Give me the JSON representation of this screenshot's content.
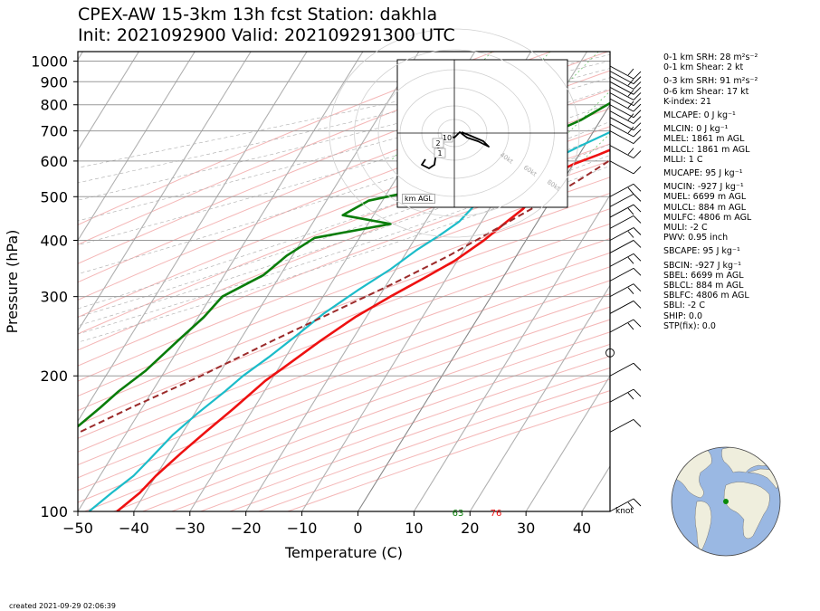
{
  "title": {
    "line1": "CPEX-AW 15-3km  13h fcst  Station: dakhla",
    "line2": "Init: 2021092900  Valid: 202109291300 UTC"
  },
  "axes": {
    "xlabel": "Temperature (C)",
    "ylabel": "Pressure (hPa)",
    "xticks": [
      "−50",
      "−40",
      "−30",
      "−20",
      "−10",
      "0",
      "10",
      "20",
      "30",
      "40"
    ],
    "yticks": [
      "100",
      "200",
      "300",
      "400",
      "500",
      "600",
      "700",
      "800",
      "900",
      "1000"
    ]
  },
  "chart_data": {
    "type": "line",
    "title": "CPEX-AW 15-3km  13h fcst  Station: dakhla",
    "xlabel": "Temperature (C)",
    "ylabel": "Pressure (hPa)",
    "xlim": [
      -50,
      45
    ],
    "ylim": [
      1050,
      100
    ],
    "yscale": "log",
    "skew": "skew-T",
    "series": [
      {
        "name": "temperature",
        "color": "#ee1111",
        "points": [
          [
            20,
            1030
          ],
          [
            23,
            1020
          ],
          [
            21,
            1005
          ],
          [
            23,
            985
          ],
          [
            26,
            960
          ],
          [
            28.5,
            935
          ],
          [
            29.5,
            915
          ],
          [
            28,
            880
          ],
          [
            25,
            835
          ],
          [
            21.5,
            790
          ],
          [
            17,
            745
          ],
          [
            12.5,
            700
          ],
          [
            7,
            655
          ],
          [
            3.5,
            620
          ],
          [
            0,
            590
          ],
          [
            -2.5,
            560
          ],
          [
            -3.5,
            530
          ],
          [
            -3.5,
            500
          ],
          [
            -4,
            470
          ],
          [
            -5.5,
            440
          ],
          [
            -7.5,
            400
          ],
          [
            -10.5,
            360
          ],
          [
            -14,
            330
          ],
          [
            -18,
            300
          ],
          [
            -22,
            270
          ],
          [
            -25.5,
            240
          ],
          [
            -29,
            210
          ],
          [
            -31,
            195
          ],
          [
            -33.5,
            170
          ],
          [
            -36,
            150
          ],
          [
            -38,
            135
          ],
          [
            -40,
            120
          ],
          [
            -41,
            110
          ],
          [
            -43,
            100
          ]
        ]
      },
      {
        "name": "dewpoint",
        "color": "#1cbcc9",
        "points": [
          [
            20.5,
            1030
          ],
          [
            18.5,
            1000
          ],
          [
            16,
            975
          ],
          [
            17.5,
            955
          ],
          [
            16,
            925
          ],
          [
            15,
            900
          ],
          [
            13,
            860
          ],
          [
            11,
            820
          ],
          [
            9,
            780
          ],
          [
            6.5,
            740
          ],
          [
            3,
            695
          ],
          [
            -1,
            645
          ],
          [
            -4.5,
            600
          ],
          [
            -8,
            555
          ],
          [
            -10.5,
            515
          ],
          [
            -13,
            480
          ],
          [
            -14,
            440
          ],
          [
            -16,
            410
          ],
          [
            -18.5,
            380
          ],
          [
            -21,
            345
          ],
          [
            -24.5,
            310
          ],
          [
            -28,
            275
          ],
          [
            -30.5,
            245
          ],
          [
            -33,
            220
          ],
          [
            -35.5,
            200
          ],
          [
            -37,
            185
          ],
          [
            -39.5,
            165
          ],
          [
            -41.5,
            148
          ],
          [
            -43,
            130
          ],
          [
            -44,
            120
          ],
          [
            -46,
            110
          ],
          [
            -48,
            100
          ]
        ]
      },
      {
        "name": "wet bulb",
        "color": "#0a7d0a",
        "points": [
          [
            18.5,
            1030
          ],
          [
            16,
            1000
          ],
          [
            10,
            980
          ],
          [
            1,
            965
          ],
          [
            5,
            930
          ],
          [
            3,
            910
          ],
          [
            2,
            875
          ],
          [
            1,
            830
          ],
          [
            -1,
            790
          ],
          [
            -3.5,
            740
          ],
          [
            -7,
            695
          ],
          [
            -11.5,
            650
          ],
          [
            -15,
            610
          ],
          [
            -18.5,
            575
          ],
          [
            -24,
            520
          ],
          [
            -32.5,
            490
          ],
          [
            -35.5,
            455
          ],
          [
            -26,
            435
          ],
          [
            -38,
            405
          ],
          [
            -41,
            370
          ],
          [
            -43,
            335
          ],
          [
            -48,
            300
          ],
          [
            -49,
            270
          ],
          [
            -51,
            240
          ],
          [
            -53.5,
            205
          ],
          [
            -56,
            185
          ],
          [
            -57.5,
            170
          ],
          [
            -60,
            150
          ],
          [
            -62.5,
            135
          ],
          [
            -65.5,
            122
          ],
          [
            -68,
            110
          ],
          [
            -70,
            100
          ]
        ]
      },
      {
        "name": "parcel",
        "color": "#9b2a2a",
        "points": [
          [
            24,
            1030
          ],
          [
            18,
            960
          ],
          [
            16,
            885
          ],
          [
            13.5,
            800
          ],
          [
            11,
            720
          ],
          [
            8.5,
            650
          ],
          [
            6,
            600
          ],
          [
            3.5,
            555
          ],
          [
            0.5,
            510
          ],
          [
            -2.5,
            470
          ],
          [
            -7,
            420
          ],
          [
            -12,
            370
          ],
          [
            -19,
            320
          ],
          [
            -26,
            280
          ],
          [
            -34,
            240
          ],
          [
            -43,
            200
          ],
          [
            -52,
            170
          ],
          [
            -62,
            140
          ],
          [
            -72,
            115
          ],
          [
            -79,
            100
          ]
        ]
      }
    ],
    "surface_labels": [
      {
        "text": "63",
        "color": "#0a7d0a"
      },
      {
        "text": "76",
        "color": "#ee1111"
      }
    ],
    "hodograph": {
      "rings_labels": [
        "40kt",
        "60kt",
        "80kt"
      ],
      "height_labels": [
        "10",
        "2",
        "1"
      ],
      "box_label": "km AGL"
    },
    "wind_unit": "knot"
  },
  "parameters": [
    "0-1 km SRH: 28 m²s⁻²",
    "0-1 km Shear: 2 kt",
    "0-3 km SRH: 91 m²s⁻²",
    "0-6 km Shear: 17 kt",
    "K-index: 21",
    "MLCAPE: 0 J kg⁻¹",
    "MLCIN: 0 J kg⁻¹",
    "MLEL: 1861 m AGL",
    "MLLCL: 1861 m AGL",
    "MLLI: 1 C",
    "MUCAPE: 95 J kg⁻¹",
    "MUCIN: -927 J kg⁻¹",
    "MUEL: 6699 m AGL",
    "MULCL: 884 m AGL",
    "MULFC: 4806 m AGL",
    "MULI: -2 C",
    "PWV: 0.95 inch",
    "SBCAPE: 95 J kg⁻¹",
    "SBCIN: -927 J kg⁻¹",
    "SBEL: 6699 m AGL",
    "SBLCL: 884 m AGL",
    "SBLFC: 4806 m AGL",
    "SBLI: -2 C",
    "SHIP: 0.0",
    "STP(fix): 0.0"
  ],
  "footer": {
    "created": "created 2021-09-29 02:06:39"
  },
  "colors": {
    "ocean": "#9ab8e3",
    "land": "#efeedd",
    "station": "#0a8a0a"
  }
}
